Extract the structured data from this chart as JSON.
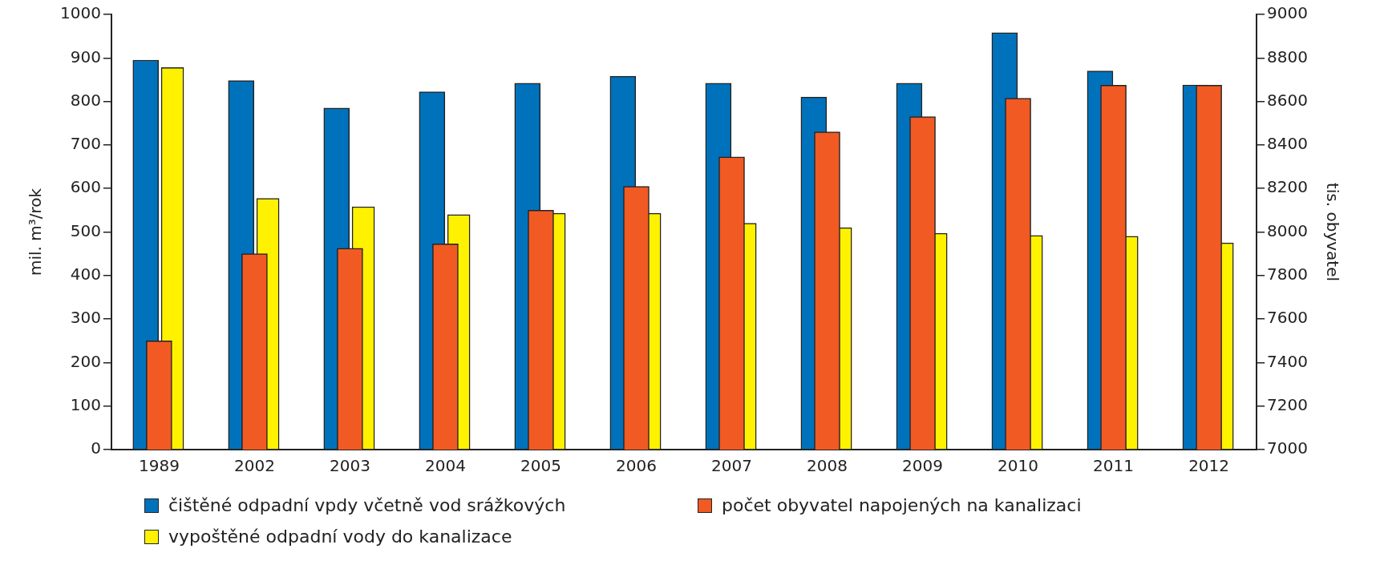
{
  "chart_data": {
    "type": "bar",
    "categories": [
      "1989",
      "2002",
      "2003",
      "2004",
      "2005",
      "2006",
      "2007",
      "2008",
      "2009",
      "2010",
      "2011",
      "2012"
    ],
    "series": [
      {
        "name": "čištěné odpadní vpdy včetně vod srážkových",
        "color": "#0072bc",
        "values": [
          895,
          848,
          785,
          822,
          842,
          858,
          842,
          810,
          842,
          958,
          870,
          838
        ]
      },
      {
        "name": "počet obyvatel napojených na kanalizaci",
        "color": "#f15a22",
        "axis": "y2",
        "values": [
          7500,
          7900,
          7925,
          7945,
          8100,
          8210,
          8345,
          8460,
          8530,
          8615,
          8675,
          8675
        ]
      },
      {
        "name": "vypoštěné odpadní vody do kanalizace",
        "color": "#fff200",
        "values": [
          878,
          577,
          558,
          540,
          543,
          543,
          520,
          510,
          497,
          492,
          490,
          475
        ]
      }
    ],
    "ylabel": "mil. m³/rok",
    "y2label": "tis. obyvatel",
    "ylim": [
      0,
      1000
    ],
    "yticks": [
      0,
      100,
      200,
      300,
      400,
      500,
      600,
      700,
      800,
      900,
      1000
    ],
    "y2lim": [
      7000,
      9000
    ],
    "y2ticks": [
      7000,
      7200,
      7400,
      7600,
      7800,
      8000,
      8200,
      8400,
      8600,
      8800,
      9000
    ],
    "grid": false,
    "legend": "bottom"
  }
}
